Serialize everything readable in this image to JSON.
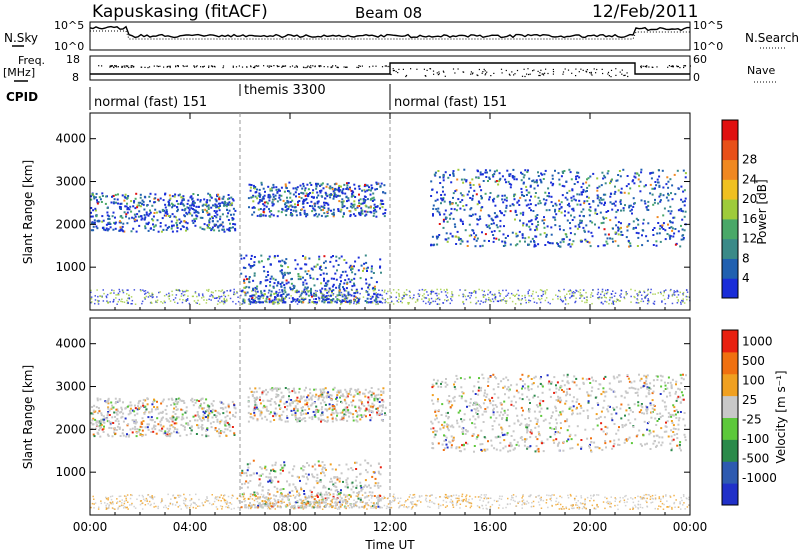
{
  "header": {
    "station": "Kapuskasing (fitACF)",
    "beam": "Beam 08",
    "date": "12/Feb/2011"
  },
  "summary": {
    "nsky_label": "N.Sky",
    "nsearch_label": "N.Search",
    "freq_label": "Freq.",
    "freq_unit": "[MHz]",
    "nave_label": "Nave",
    "cpid_label": "CPID",
    "noise_ticks": [
      "10^5",
      "10^0"
    ],
    "noise_ticks_right": [
      "10^5",
      "10^0"
    ],
    "freq_ticks": [
      "18",
      "8"
    ],
    "nave_ticks": [
      "60",
      "0"
    ],
    "cpid_segments": [
      {
        "label": "normal (fast) 151",
        "start_h": 0,
        "end_h": 6
      },
      {
        "label": "themis 3300",
        "start_h": 6,
        "end_h": 12
      },
      {
        "label": "normal (fast) 151",
        "start_h": 12,
        "end_h": 24
      }
    ]
  },
  "chart_data": [
    {
      "type": "heatmap",
      "panel": "power",
      "ylabel": "Slant Range [km]",
      "xlabel": "Time UT",
      "x_range_h": [
        0,
        24
      ],
      "ylim": [
        0,
        4600
      ],
      "yticks": [
        "1000",
        "2000",
        "3000",
        "4000"
      ],
      "xticks": [
        "00:00",
        "04:00",
        "08:00",
        "12:00",
        "16:00",
        "20:00",
        "00:00"
      ],
      "colorbar": {
        "label": "Power [dB]",
        "ticks": [
          "4",
          "8",
          "12",
          "16",
          "20",
          "24",
          "28"
        ],
        "colors": [
          "#1a2dd8",
          "#2060b0",
          "#3a8a88",
          "#4aa868",
          "#9ecb3a",
          "#f0c020",
          "#f08820",
          "#e85018",
          "#e01010"
        ]
      },
      "bands": [
        {
          "t0": 0.0,
          "t1": 5.8,
          "r0": 1850,
          "r1": 2750
        },
        {
          "t0": 6.3,
          "t1": 11.8,
          "r0": 2200,
          "r1": 3000
        },
        {
          "t0": 13.6,
          "t1": 23.8,
          "r0": 1500,
          "r1": 3300
        },
        {
          "t0": 6.0,
          "t1": 11.6,
          "r0": 200,
          "r1": 1300
        }
      ]
    },
    {
      "type": "heatmap",
      "panel": "velocity",
      "ylabel": "Slant Range [km]",
      "xlabel": "Time UT",
      "x_range_h": [
        0,
        24
      ],
      "ylim": [
        0,
        4600
      ],
      "yticks": [
        "1000",
        "2000",
        "3000",
        "4000"
      ],
      "xticks": [
        "00:00",
        "04:00",
        "08:00",
        "12:00",
        "16:00",
        "20:00",
        "00:00"
      ],
      "colorbar": {
        "label": "Velocity [m s⁻¹]",
        "ticks": [
          "1000",
          "500",
          "100",
          "25",
          "-25",
          "-100",
          "-500",
          "-1000"
        ],
        "colors": [
          "#2030c8",
          "#2e5ab0",
          "#2a8a4a",
          "#5cc83a",
          "#c8c8c8",
          "#f0a020",
          "#f07010",
          "#e82010"
        ]
      },
      "bands": [
        {
          "t0": 0.0,
          "t1": 5.8,
          "r0": 1850,
          "r1": 2750
        },
        {
          "t0": 6.3,
          "t1": 11.8,
          "r0": 2200,
          "r1": 3000
        },
        {
          "t0": 13.6,
          "t1": 23.8,
          "r0": 1500,
          "r1": 3300
        },
        {
          "t0": 6.0,
          "t1": 11.6,
          "r0": 200,
          "r1": 1300
        }
      ]
    }
  ]
}
